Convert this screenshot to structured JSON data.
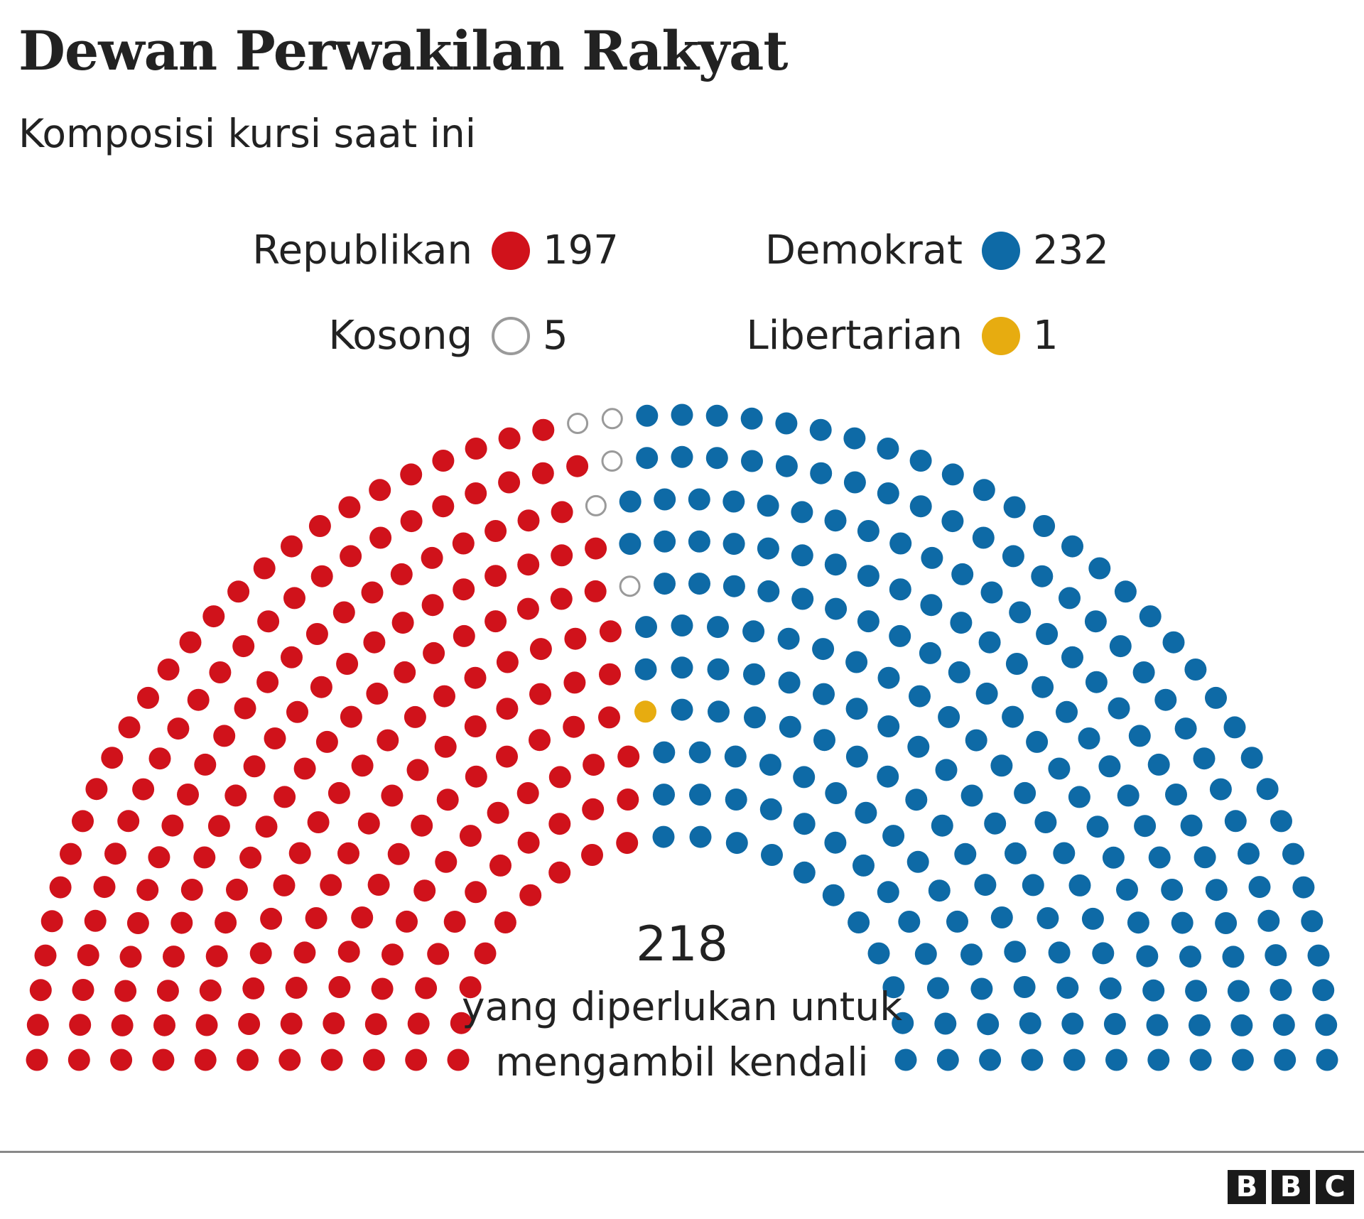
{
  "header": {
    "title": "Dewan Perwakilan Rakyat",
    "subtitle": "Komposisi kursi saat ini"
  },
  "legend": [
    {
      "label": "Republikan",
      "count": "197",
      "color": "#d0121b"
    },
    {
      "label": "Demokrat",
      "count": "232",
      "color": "#0e6aa6"
    },
    {
      "label": "Kosong",
      "count": "5",
      "color": "#9a9a9a"
    },
    {
      "label": "Libertarian",
      "count": "1",
      "color": "#e7ac10"
    }
  ],
  "majority": {
    "number": "218",
    "line1": "yang diperlukan untuk",
    "line2": "mengambil kendali"
  },
  "logo": {
    "letters": [
      "B",
      "B",
      "C"
    ]
  },
  "chart_data": {
    "type": "parliament",
    "title": "Dewan Perwakilan Rakyat",
    "subtitle": "Komposisi kursi saat ini",
    "total_seats": 435,
    "majority": 218,
    "series": [
      {
        "name": "Republikan",
        "values": [
          197
        ],
        "color": "#d0121b",
        "fill": "solid"
      },
      {
        "name": "Kosong",
        "values": [
          5
        ],
        "color": "#9a9a9a",
        "fill": "outline"
      },
      {
        "name": "Libertarian",
        "values": [
          1
        ],
        "color": "#e7ac10",
        "fill": "solid"
      },
      {
        "name": "Demokrat",
        "values": [
          232
        ],
        "color": "#0e6aa6",
        "fill": "solid"
      }
    ],
    "order": "left-to-right",
    "legend_position": "top"
  }
}
